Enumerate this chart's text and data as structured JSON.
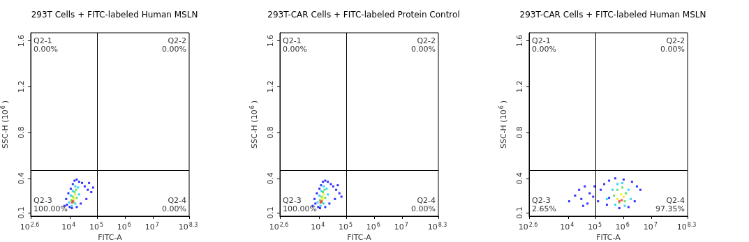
{
  "chart_data": [
    {
      "type": "scatter",
      "title": "293T Cells + FITC-labeled Human MSLN",
      "xlabel": "FITC-A",
      "ylabel": "SSC-H (10$^{6}$)",
      "log": "x",
      "grid": false,
      "marker": "square",
      "xlim": [
        398.1,
        199526231
      ],
      "xticks": [
        {
          "value": 398.1,
          "label": "10$^{2.6}$"
        },
        {
          "value": 10000,
          "label": "10$^{4}$"
        },
        {
          "value": 100000,
          "label": "10$^{5}$"
        },
        {
          "value": 1000000,
          "label": "10$^{6}$"
        },
        {
          "value": 10000000,
          "label": "10$^{7}$"
        },
        {
          "value": 199526231,
          "label": "10$^{8.3}$"
        }
      ],
      "ylim": [
        0.07,
        1.67
      ],
      "yticks": [
        0.1,
        0.4,
        0.8,
        1.2,
        1.6
      ],
      "ref_lines": [
        {
          "axis": "x",
          "value": 100000,
          "label": null
        },
        {
          "axis": "y",
          "value": 0.47,
          "label": null
        }
      ],
      "annotations": [
        "Q2-1",
        "0.00%",
        "Q2-2",
        "0.00%",
        "Q2-3",
        "100.00%",
        "Q2-4",
        "0.00%"
      ],
      "series": [
        {
          "color": "#0000ff",
          "x": [
            6500,
            7500,
            8000,
            9000,
            10000,
            11000,
            13000,
            15000,
            18000,
            22000,
            28000,
            35000,
            45000,
            60000,
            40000,
            25000,
            18000,
            12000,
            50000,
            70000
          ],
          "values": [
            0.16,
            0.22,
            0.17,
            0.27,
            0.15,
            0.31,
            0.35,
            0.38,
            0.39,
            0.37,
            0.36,
            0.33,
            0.3,
            0.28,
            0.22,
            0.18,
            0.15,
            0.14,
            0.36,
            0.32
          ]
        },
        {
          "color": "#00c8ff",
          "x": [
            9500,
            11000,
            13000,
            16000,
            20000,
            22000,
            16000,
            12000
          ],
          "values": [
            0.19,
            0.25,
            0.29,
            0.33,
            0.32,
            0.26,
            0.18,
            0.16
          ]
        },
        {
          "color": "#3cdc3c",
          "x": [
            11500,
            13000,
            15000,
            17000,
            18000,
            14000
          ],
          "values": [
            0.21,
            0.24,
            0.28,
            0.3,
            0.23,
            0.19
          ]
        },
        {
          "color": "#f0e800",
          "x": [
            14000,
            14000,
            16000
          ],
          "values": [
            0.215,
            0.23,
            0.26
          ]
        },
        {
          "color": "#ff2020",
          "x": [
            12000,
            13000
          ],
          "values": [
            0.19,
            0.2
          ]
        }
      ]
    },
    {
      "type": "scatter",
      "title": "293T-CAR Cells + FITC-labeled Protein Control",
      "xlabel": "FITC-A",
      "ylabel": "SSC-H (10$^{6}$)",
      "log": "x",
      "grid": false,
      "marker": "square",
      "xlim": [
        398.1,
        199526231
      ],
      "xticks": [
        {
          "value": 398.1,
          "label": "10$^{2.6}$"
        },
        {
          "value": 10000,
          "label": "10$^{4}$"
        },
        {
          "value": 100000,
          "label": "10$^{5}$"
        },
        {
          "value": 1000000,
          "label": "10$^{6}$"
        },
        {
          "value": 10000000,
          "label": "10$^{7}$"
        },
        {
          "value": 199526231,
          "label": "10$^{8.3}$"
        }
      ],
      "ylim": [
        0.07,
        1.67
      ],
      "yticks": [
        0.1,
        0.4,
        0.8,
        1.2,
        1.6
      ],
      "ref_lines": [
        {
          "axis": "x",
          "value": 100000,
          "label": null
        },
        {
          "axis": "y",
          "value": 0.47,
          "label": null
        }
      ],
      "annotations": [
        "Q2-1",
        "0.00%",
        "Q2-2",
        "0.00%",
        "Q2-3",
        "100.00%",
        "Q2-4",
        "0.00%"
      ],
      "series": [
        {
          "color": "#0000ff",
          "x": [
            6000,
            7000,
            7500,
            8500,
            9500,
            10500,
            12000,
            14000,
            17000,
            21000,
            27000,
            33000,
            42000,
            55000,
            38000,
            24000,
            17000,
            11000,
            48000,
            65000
          ],
          "values": [
            0.16,
            0.22,
            0.18,
            0.27,
            0.15,
            0.31,
            0.34,
            0.37,
            0.38,
            0.37,
            0.35,
            0.33,
            0.3,
            0.27,
            0.22,
            0.18,
            0.15,
            0.14,
            0.34,
            0.24
          ]
        },
        {
          "color": "#00c8ff",
          "x": [
            9000,
            10500,
            12500,
            15000,
            19000,
            21000,
            15000,
            11500
          ],
          "values": [
            0.19,
            0.25,
            0.29,
            0.33,
            0.31,
            0.26,
            0.18,
            0.16
          ]
        },
        {
          "color": "#3cdc3c",
          "x": [
            11000,
            12500,
            14000,
            16000,
            17000,
            13000
          ],
          "values": [
            0.21,
            0.24,
            0.28,
            0.3,
            0.23,
            0.19
          ]
        },
        {
          "color": "#f0e800",
          "x": [
            13500,
            13500,
            15000
          ],
          "values": [
            0.215,
            0.23,
            0.26
          ]
        },
        {
          "color": "#ff2020",
          "x": [
            11500,
            12500
          ],
          "values": [
            0.19,
            0.2
          ]
        }
      ]
    },
    {
      "type": "scatter",
      "title": "293T-CAR Cells + FITC-labeled Human MSLN",
      "xlabel": "FITC-A",
      "ylabel": "SSC-H (10$^{6}$)",
      "log": "x",
      "grid": false,
      "marker": "square",
      "xlim": [
        398.1,
        199526231
      ],
      "xticks": [
        {
          "value": 398.1,
          "label": "10$^{2.6}$"
        },
        {
          "value": 10000,
          "label": "10$^{4}$"
        },
        {
          "value": 100000,
          "label": "10$^{5}$"
        },
        {
          "value": 1000000,
          "label": "10$^{6}$"
        },
        {
          "value": 10000000,
          "label": "10$^{7}$"
        },
        {
          "value": 199526231,
          "label": "10$^{8.3}$"
        }
      ],
      "ylim": [
        0.07,
        1.67
      ],
      "yticks": [
        0.1,
        0.4,
        0.8,
        1.2,
        1.6
      ],
      "ref_lines": [
        {
          "axis": "x",
          "value": 100000,
          "label": null
        },
        {
          "axis": "y",
          "value": 0.47,
          "label": null
        }
      ],
      "annotations": [
        "Q2-1",
        "0.00%",
        "Q2-2",
        "0.00%",
        "Q2-3",
        "2.65%",
        "Q2-4",
        "97.35%"
      ],
      "series": [
        {
          "color": "#0000ff",
          "x": [
            11000,
            18000,
            25000,
            30000,
            40000,
            50000,
            60000,
            80000,
            90000,
            35000,
            120000,
            150000,
            200000,
            250000,
            300000,
            500000,
            1000000,
            2000000,
            3000000,
            4000000,
            2500000,
            1500000,
            700000,
            300000
          ],
          "values": [
            0.2,
            0.25,
            0.3,
            0.22,
            0.33,
            0.18,
            0.27,
            0.24,
            0.33,
            0.16,
            0.2,
            0.3,
            0.35,
            0.17,
            0.38,
            0.4,
            0.39,
            0.37,
            0.33,
            0.3,
            0.2,
            0.15,
            0.14,
            0.23
          ]
        },
        {
          "color": "#00c8ff",
          "x": [
            250000,
            400000,
            600000,
            900000,
            1500000,
            1800000,
            1100000,
            500000
          ],
          "values": [
            0.22,
            0.3,
            0.35,
            0.36,
            0.3,
            0.22,
            0.16,
            0.17
          ]
        },
        {
          "color": "#3cdc3c",
          "x": [
            450000,
            600000,
            900000,
            1200000,
            1100000,
            700000
          ],
          "values": [
            0.25,
            0.3,
            0.32,
            0.27,
            0.2,
            0.19
          ]
        },
        {
          "color": "#f0e800",
          "x": [
            600000,
            800000,
            1000000
          ],
          "values": [
            0.22,
            0.26,
            0.24
          ]
        },
        {
          "color": "#ff2020",
          "x": [
            700000,
            850000
          ],
          "values": [
            0.2,
            0.21
          ]
        }
      ]
    }
  ]
}
